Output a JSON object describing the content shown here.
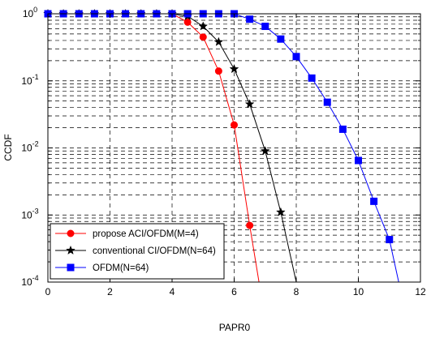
{
  "chart_data": {
    "type": "line",
    "title": "",
    "xlabel": "PAPR0",
    "ylabel": "CCDF",
    "x_scale": "linear",
    "y_scale": "log",
    "xlim": [
      0,
      12
    ],
    "ylim": [
      0.0001,
      1
    ],
    "x_ticks": [
      0,
      2,
      4,
      6,
      8,
      10,
      12
    ],
    "x_tick_labels": [
      "0",
      "2",
      "4",
      "6",
      "8",
      "10",
      "12"
    ],
    "y_ticks": [
      0.0001,
      0.001,
      0.01,
      0.1,
      1
    ],
    "y_tick_labels": [
      {
        "base": "10",
        "exp": "-4"
      },
      {
        "base": "10",
        "exp": "-3"
      },
      {
        "base": "10",
        "exp": "-2"
      },
      {
        "base": "10",
        "exp": "-1"
      },
      {
        "base": "10",
        "exp": "0"
      }
    ],
    "grid": true,
    "legend_position": "bottom-left",
    "series": [
      {
        "name": "propose ACI/OFDM(M=4)",
        "color": "#ff0000",
        "marker": "circle",
        "x": [
          0,
          0.5,
          1,
          1.5,
          2,
          2.5,
          3,
          3.5,
          4,
          4.5,
          5,
          5.5,
          6,
          6.5,
          6.8
        ],
        "y": [
          1,
          1,
          1,
          1,
          1,
          1,
          1,
          1,
          1,
          0.75,
          0.45,
          0.14,
          0.022,
          0.0007,
          0.0001
        ]
      },
      {
        "name": "conventional CI/OFDM(N=64)",
        "color": "#000000",
        "marker": "star",
        "x": [
          0,
          0.5,
          1,
          1.5,
          2,
          2.5,
          3,
          3.5,
          4,
          4.5,
          5,
          5.5,
          6,
          6.5,
          7,
          7.5,
          8
        ],
        "y": [
          1,
          1,
          1,
          1,
          1,
          1,
          1,
          1,
          1,
          0.92,
          0.65,
          0.38,
          0.15,
          0.045,
          0.009,
          0.0011,
          0.0001
        ]
      },
      {
        "name": "OFDM(N=64)",
        "color": "#0000ff",
        "marker": "square",
        "x": [
          0,
          0.5,
          1,
          1.5,
          2,
          2.5,
          3,
          3.5,
          4,
          4.5,
          5,
          5.5,
          6,
          6.5,
          7,
          7.5,
          8,
          8.5,
          9,
          9.5,
          10,
          10.5,
          11,
          11.3
        ],
        "y": [
          1,
          1,
          1,
          1,
          1,
          1,
          1,
          1,
          1,
          1,
          1,
          1,
          1,
          0.83,
          0.65,
          0.42,
          0.23,
          0.11,
          0.048,
          0.019,
          0.0065,
          0.0016,
          0.00043,
          0.0001
        ]
      }
    ]
  }
}
